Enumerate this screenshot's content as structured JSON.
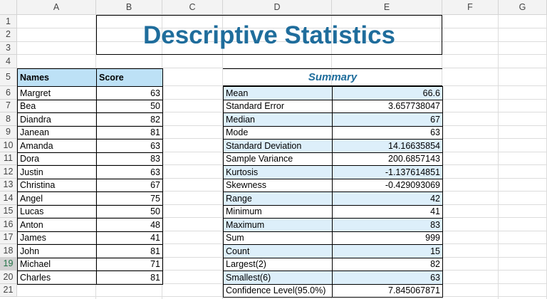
{
  "columns": [
    "A",
    "B",
    "C",
    "D",
    "E",
    "F",
    "G"
  ],
  "row_numbers": [
    1,
    2,
    3,
    4,
    5,
    6,
    7,
    8,
    9,
    10,
    11,
    12,
    13,
    14,
    15,
    16,
    17,
    18,
    19,
    20,
    21
  ],
  "title": "Descriptive Statistics",
  "scores_table": {
    "header": [
      "Names",
      "Score"
    ],
    "rows": [
      [
        "Margret",
        63
      ],
      [
        "Bea",
        50
      ],
      [
        "Diandra",
        82
      ],
      [
        "Janean",
        81
      ],
      [
        "Amanda",
        63
      ],
      [
        "Dora",
        83
      ],
      [
        "Justin",
        63
      ],
      [
        "Christina",
        67
      ],
      [
        "Angel",
        75
      ],
      [
        "Lucas",
        50
      ],
      [
        "Anton",
        48
      ],
      [
        "James",
        41
      ],
      [
        "John",
        81
      ],
      [
        "Michael",
        71
      ],
      [
        "Charles",
        81
      ]
    ]
  },
  "summary": {
    "title": "Summary",
    "rows": [
      [
        "Mean",
        66.6
      ],
      [
        "Standard Error",
        3.657738047
      ],
      [
        "Median",
        67
      ],
      [
        "Mode",
        63
      ],
      [
        "Standard Deviation",
        14.16635854
      ],
      [
        "Sample Variance",
        200.6857143
      ],
      [
        "Kurtosis",
        -1.137614851
      ],
      [
        "Skewness",
        -0.429093069
      ],
      [
        "Range",
        42
      ],
      [
        "Minimum",
        41
      ],
      [
        "Maximum",
        83
      ],
      [
        "Sum",
        999
      ],
      [
        "Count",
        15
      ],
      [
        "Largest(2)",
        82
      ],
      [
        "Smallest(6)",
        63
      ],
      [
        "Confidence Level(95.0%)",
        7.845067871
      ]
    ]
  }
}
